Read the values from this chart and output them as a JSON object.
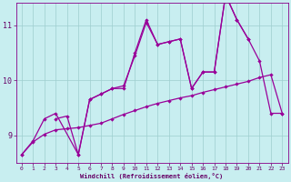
{
  "xlabel": "Windchill (Refroidissement éolien,°C)",
  "background_color": "#c8eef0",
  "line_color": "#990099",
  "grid_color": "#9ecece",
  "x": [
    0,
    1,
    2,
    3,
    4,
    5,
    6,
    7,
    8,
    9,
    10,
    11,
    12,
    13,
    14,
    15,
    16,
    17,
    18,
    19,
    20,
    21,
    22,
    23
  ],
  "line1_x": [
    0,
    1,
    2,
    3,
    5,
    6,
    7,
    8,
    9,
    10,
    11,
    12,
    13,
    14,
    15,
    16,
    17,
    18,
    19,
    20
  ],
  "line1_y": [
    8.65,
    8.9,
    9.3,
    9.4,
    8.65,
    9.65,
    9.75,
    9.85,
    9.85,
    10.5,
    11.1,
    10.65,
    10.7,
    10.75,
    9.85,
    10.15,
    10.15,
    11.55,
    11.1,
    10.75
  ],
  "line2_x": [
    3,
    4,
    5,
    6,
    7,
    8,
    9,
    10,
    11,
    12,
    13,
    14,
    15,
    16,
    17,
    18,
    19,
    20,
    21,
    22,
    23
  ],
  "line2_y": [
    9.3,
    9.35,
    8.65,
    9.65,
    9.75,
    9.85,
    9.9,
    10.45,
    11.05,
    10.65,
    10.7,
    10.75,
    9.85,
    10.15,
    10.15,
    11.55,
    11.1,
    10.75,
    10.35,
    9.4,
    9.4
  ],
  "line3_x": [
    0,
    1,
    2,
    3,
    4,
    5,
    6,
    7,
    8,
    9,
    10,
    11,
    12,
    13,
    14,
    15,
    16,
    17,
    18,
    19,
    20,
    21,
    22,
    23
  ],
  "line3_y": [
    8.65,
    8.88,
    9.02,
    9.1,
    9.12,
    9.14,
    9.18,
    9.22,
    9.3,
    9.38,
    9.45,
    9.52,
    9.58,
    9.63,
    9.68,
    9.72,
    9.78,
    9.83,
    9.88,
    9.93,
    9.98,
    10.05,
    10.1,
    9.4
  ],
  "ylim": [
    8.5,
    11.4
  ],
  "xlim": [
    -0.5,
    23.5
  ],
  "yticks": [
    9,
    10,
    11
  ],
  "xticks": [
    0,
    1,
    2,
    3,
    4,
    5,
    6,
    7,
    8,
    9,
    10,
    11,
    12,
    13,
    14,
    15,
    16,
    17,
    18,
    19,
    20,
    21,
    22,
    23
  ]
}
